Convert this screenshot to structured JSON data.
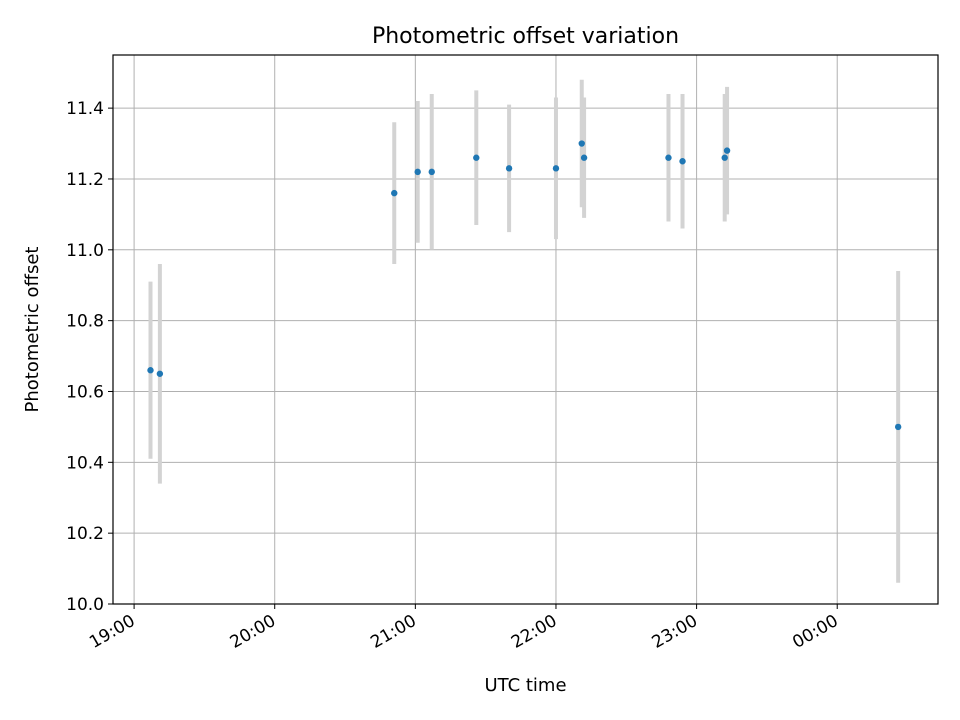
{
  "chart_data": {
    "type": "scatter",
    "title": "Photometric offset variation",
    "xlabel": "UTC time",
    "ylabel": "Photometric offset",
    "x_axis": {
      "kind": "time",
      "range": [
        "18:51",
        "24:43"
      ],
      "ticks": [
        {
          "time": "19:00",
          "label": "19:00"
        },
        {
          "time": "20:00",
          "label": "20:00"
        },
        {
          "time": "21:00",
          "label": "21:00"
        },
        {
          "time": "22:00",
          "label": "22:00"
        },
        {
          "time": "23:00",
          "label": "23:00"
        },
        {
          "time": "24:00",
          "label": "00:00"
        }
      ]
    },
    "ylim": [
      10.0,
      11.55
    ],
    "y_ticks": [
      "10.0",
      "10.2",
      "10.4",
      "10.6",
      "10.8",
      "11.0",
      "11.2",
      "11.4"
    ],
    "grid": true,
    "colors": {
      "points": "#1f77b4",
      "errorbars": "#d3d3d3",
      "grid": "#b0b0b0"
    },
    "points": [
      {
        "time": "19:07",
        "y": 10.66,
        "err": 0.25
      },
      {
        "time": "19:11",
        "y": 10.65,
        "err": 0.31
      },
      {
        "time": "20:51",
        "y": 11.16,
        "err": 0.2
      },
      {
        "time": "21:01",
        "y": 11.22,
        "err": 0.2
      },
      {
        "time": "21:07",
        "y": 11.22,
        "err": 0.22
      },
      {
        "time": "21:26",
        "y": 11.26,
        "err": 0.19
      },
      {
        "time": "21:40",
        "y": 11.23,
        "err": 0.18
      },
      {
        "time": "22:00",
        "y": 11.23,
        "err": 0.2
      },
      {
        "time": "22:11",
        "y": 11.3,
        "err": 0.18
      },
      {
        "time": "22:12",
        "y": 11.26,
        "err": 0.17
      },
      {
        "time": "22:48",
        "y": 11.26,
        "err": 0.18
      },
      {
        "time": "22:54",
        "y": 11.25,
        "err": 0.19
      },
      {
        "time": "23:12",
        "y": 11.26,
        "err": 0.18
      },
      {
        "time": "23:13",
        "y": 11.28,
        "err": 0.18
      },
      {
        "time": "24:26",
        "y": 10.5,
        "err": 0.44
      }
    ]
  }
}
